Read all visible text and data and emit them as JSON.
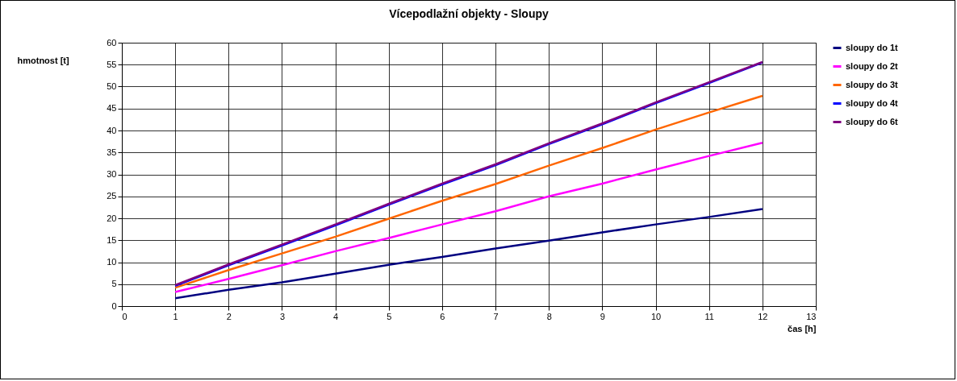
{
  "chart_data": {
    "type": "line",
    "title": "Vícepodlažní objekty - Sloupy",
    "xlabel": "čas [h]",
    "ylabel": "hmotnost [t]",
    "x": [
      1,
      2,
      3,
      4,
      5,
      6,
      7,
      8,
      9,
      10,
      11,
      12
    ],
    "series": [
      {
        "name": "sloupy do 1t",
        "color": "#000080",
        "values": [
          1.8,
          3.7,
          5.4,
          7.4,
          9.4,
          11.2,
          13.1,
          14.9,
          16.8,
          18.6,
          20.3,
          22.1
        ]
      },
      {
        "name": "sloupy do 2t",
        "color": "#ff00ff",
        "values": [
          3.2,
          6.2,
          9.3,
          12.5,
          15.5,
          18.6,
          21.6,
          25.0,
          27.9,
          31.1,
          34.2,
          37.2
        ]
      },
      {
        "name": "sloupy do 3t",
        "color": "#ff6600",
        "values": [
          4.2,
          8.2,
          12.0,
          15.8,
          19.9,
          24.0,
          27.8,
          32.0,
          36.0,
          40.2,
          44.1,
          47.9
        ]
      },
      {
        "name": "sloupy do 4t",
        "color": "#0000ff",
        "values": [
          4.6,
          9.3,
          13.8,
          18.4,
          23.1,
          27.7,
          32.1,
          36.9,
          41.4,
          46.2,
          50.8,
          55.5
        ]
      },
      {
        "name": "sloupy do 6t",
        "color": "#800080",
        "values": [
          4.8,
          9.5,
          14.0,
          18.6,
          23.3,
          27.9,
          32.3,
          37.1,
          41.6,
          46.4,
          51.0,
          55.6
        ]
      }
    ],
    "xlim": [
      0,
      13
    ],
    "xticks": [
      0,
      1,
      2,
      3,
      4,
      5,
      6,
      7,
      8,
      9,
      10,
      11,
      12,
      13
    ],
    "ylim": [
      0,
      60
    ],
    "yticks": [
      0,
      5,
      10,
      15,
      20,
      25,
      30,
      35,
      40,
      45,
      50,
      55,
      60
    ],
    "grid": true,
    "legend": "right",
    "marker": "none",
    "line_style": "solid"
  }
}
